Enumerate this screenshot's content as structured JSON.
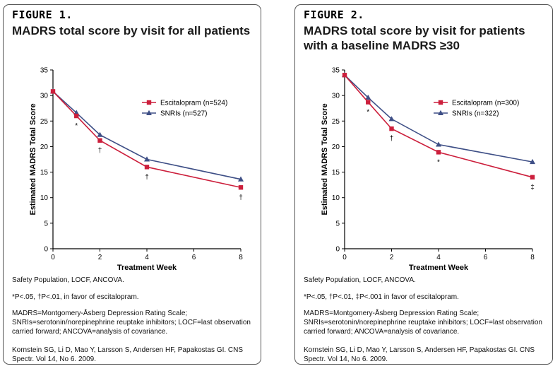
{
  "figures": [
    {
      "label": "FIGURE 1.",
      "title": "MADRS total score by visit for all patients",
      "notes": {
        "population": "Safety Population, LOCF, ANCOVA.",
        "significance": "*P<.05, †P<.01, in favor of escitalopram.",
        "abbreviations": "MADRS=Montgomery-Åsberg Depression Rating Scale; SNRIs=serotonin/norepinephrine reuptake inhibitors; LOCF=last observation carried forward; ANCOVA=analysis of covariance.",
        "citation": "Kornstein SG, Li D, Mao Y, Larsson S, Andersen HF, Papakostas GI. CNS Spectr. Vol 14, No 6. 2009."
      }
    },
    {
      "label": "FIGURE 2.",
      "title": "MADRS total score by visit for patients with a baseline MADRS ≥30",
      "notes": {
        "population": "Safety Population, LOCF, ANCOVA.",
        "significance": "*P<.05, †P<.01, ‡P<.001 in favor of escitalopram.",
        "abbreviations": "MADRS=Montgomery-Åsberg Depression Rating Scale; SNRIs=serotonin/norepinephrine reuptake inhibitors; LOCF=last observation carried forward; ANCOVA=analysis of covariance.",
        "citation": "Kornstein SG, Li D, Mao Y, Larsson S, Andersen HF, Papakostas GI. CNS Spectr. Vol 14, No 6. 2009."
      }
    }
  ],
  "colors": {
    "escitalopram": "#cc1f3c",
    "snri": "#3e4f86",
    "axis": "#000000"
  },
  "chart_data": [
    {
      "type": "line",
      "title": "MADRS total score by visit for all patients",
      "xlabel": "Treatment Week",
      "ylabel": "Estimated MADRS Total Score",
      "xlim": [
        0,
        8
      ],
      "ylim": [
        0,
        35
      ],
      "xticks": [
        0,
        2,
        4,
        6,
        8
      ],
      "yticks": [
        0,
        5,
        10,
        15,
        20,
        25,
        30,
        35
      ],
      "legend_position": "top-right",
      "series": [
        {
          "name": "Escitalopram (n=524)",
          "marker": "square",
          "color_key": "escitalopram",
          "x": [
            0,
            1,
            2,
            4,
            8
          ],
          "values": [
            30.8,
            26.0,
            21.2,
            16.0,
            12.0
          ]
        },
        {
          "name": "SNRIs (n=527)",
          "marker": "triangle",
          "color_key": "snri",
          "x": [
            0,
            1,
            2,
            4,
            8
          ],
          "values": [
            30.8,
            26.6,
            22.3,
            17.5,
            13.6
          ]
        }
      ],
      "annotations": [
        {
          "x": 1,
          "y": 26.0,
          "text": "*"
        },
        {
          "x": 2,
          "y": 21.2,
          "text": "†"
        },
        {
          "x": 4,
          "y": 16.0,
          "text": "†"
        },
        {
          "x": 8,
          "y": 12.0,
          "text": "†"
        }
      ]
    },
    {
      "type": "line",
      "title": "MADRS total score by visit for patients with a baseline MADRS ≥30",
      "xlabel": "Treatment Week",
      "ylabel": "Estimated MADRS Total Score",
      "xlim": [
        0,
        8
      ],
      "ylim": [
        0,
        35
      ],
      "xticks": [
        0,
        2,
        4,
        6,
        8
      ],
      "yticks": [
        0,
        5,
        10,
        15,
        20,
        25,
        30,
        35
      ],
      "legend_position": "top-right",
      "series": [
        {
          "name": "Escitalopram (n=300)",
          "marker": "square",
          "color_key": "escitalopram",
          "x": [
            0,
            1,
            2,
            4,
            8
          ],
          "values": [
            34.0,
            28.7,
            23.5,
            18.9,
            14.0
          ]
        },
        {
          "name": "SNRIs (n=322)",
          "marker": "triangle",
          "color_key": "snri",
          "x": [
            0,
            1,
            2,
            4,
            8
          ],
          "values": [
            34.0,
            29.6,
            25.4,
            20.4,
            17.0
          ]
        }
      ],
      "annotations": [
        {
          "x": 1,
          "y": 28.7,
          "text": "*"
        },
        {
          "x": 2,
          "y": 23.5,
          "text": "†"
        },
        {
          "x": 4,
          "y": 18.9,
          "text": "*"
        },
        {
          "x": 8,
          "y": 14.0,
          "text": "‡"
        }
      ]
    }
  ]
}
